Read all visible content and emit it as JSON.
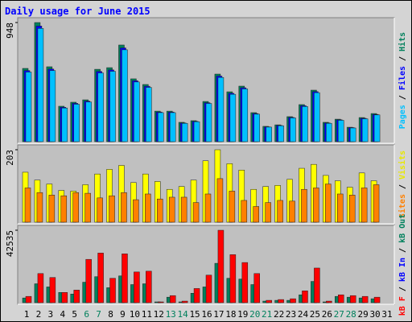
{
  "title": "Daily usage for June 2015",
  "categories": [
    "1",
    "2",
    "3",
    "4",
    "5",
    "6",
    "7",
    "8",
    "9",
    "10",
    "11",
    "12",
    "13",
    "14",
    "15",
    "16",
    "17",
    "18",
    "19",
    "20",
    "21",
    "22",
    "23",
    "24",
    "25",
    "26",
    "27",
    "28",
    "29",
    "30",
    "31"
  ],
  "x_label_colors": [
    "#000000",
    "#000000",
    "#000000",
    "#000000",
    "#000000",
    "#00805c",
    "#00805c",
    "#000000",
    "#000000",
    "#000000",
    "#000000",
    "#000000",
    "#00805c",
    "#00805c",
    "#000000",
    "#000000",
    "#000000",
    "#000000",
    "#000000",
    "#00805c",
    "#00805c",
    "#000000",
    "#000000",
    "#000000",
    "#000000",
    "#000000",
    "#00805c",
    "#00805c",
    "#000000",
    "#000000",
    "#000000"
  ],
  "legend_separator": " / ",
  "chart_data": [
    {
      "type": "bar",
      "ylim": [
        0,
        948
      ],
      "yticks": [
        948
      ],
      "series": [
        {
          "name": "Pages",
          "color": "#00c0ff",
          "values": [
            554,
            901,
            566,
            268,
            298,
            316,
            547,
            560,
            731,
            475,
            432,
            231,
            231,
            146,
            159,
            304,
            511,
            377,
            420,
            219,
            116,
            127,
            189,
            280,
            390,
            146,
            170,
            109,
            182,
            213,
            0
          ]
        },
        {
          "name": "Files",
          "color": "#0000ff",
          "values": [
            566,
            920,
            578,
            274,
            305,
            323,
            559,
            571,
            746,
            485,
            441,
            236,
            236,
            149,
            162,
            310,
            522,
            385,
            429,
            224,
            118,
            130,
            193,
            286,
            398,
            149,
            174,
            112,
            186,
            217,
            0
          ]
        },
        {
          "name": "Hits",
          "color": "#00805c",
          "values": [
            583,
            948,
            596,
            282,
            314,
            333,
            576,
            589,
            769,
            500,
            455,
            243,
            243,
            154,
            167,
            320,
            538,
            397,
            442,
            231,
            122,
            134,
            199,
            295,
            410,
            154,
            179,
            115,
            192,
            224,
            0
          ]
        }
      ]
    },
    {
      "type": "bar",
      "ylim": [
        0,
        203
      ],
      "yticks": [
        203
      ],
      "series": [
        {
          "name": "Sites",
          "color": "#ff8000",
          "values": [
            96,
            83,
            76,
            74,
            83,
            81,
            68,
            74,
            83,
            63,
            79,
            65,
            70,
            70,
            55,
            79,
            122,
            87,
            61,
            44,
            55,
            61,
            59,
            92,
            96,
            107,
            79,
            76,
            96,
            105,
            0
          ]
        },
        {
          "name": "Visits",
          "color": "#ffff00",
          "values": [
            140,
            118,
            107,
            89,
            87,
            105,
            135,
            148,
            159,
            111,
            135,
            114,
            92,
            100,
            118,
            172,
            203,
            164,
            146,
            92,
            100,
            103,
            120,
            151,
            162,
            131,
            116,
            98,
            138,
            116,
            0
          ]
        }
      ]
    },
    {
      "type": "bar",
      "ylim": [
        0,
        42535
      ],
      "yticks": [
        42535
      ],
      "series": [
        {
          "name": "kB F",
          "color": "#ff0000",
          "values": [
            3699,
            17106,
            14795,
            6011,
            7397,
            25429,
            29128,
            14333,
            28665,
            18031,
            18493,
            462,
            4161,
            925,
            8322,
            16181,
            42535,
            28202,
            23579,
            17106,
            1387,
            1849,
            2312,
            6935,
            20343,
            925,
            4623,
            4161,
            3699,
            3236,
            0
          ]
        },
        {
          "name": "kB In",
          "color": "#0000ff",
          "values": [
            0,
            0,
            0,
            0,
            0,
            0,
            0,
            0,
            0,
            0,
            0,
            0,
            0,
            0,
            0,
            0,
            0,
            0,
            0,
            0,
            0,
            0,
            0,
            0,
            0,
            0,
            0,
            0,
            0,
            0,
            0
          ]
        },
        {
          "name": "kB Out",
          "color": "#00805c",
          "values": [
            2774,
            11096,
            9247,
            6011,
            5086,
            12021,
            15257,
            8784,
            15720,
            10634,
            11096,
            462,
            3236,
            462,
            5548,
            9247,
            23117,
            14333,
            13871,
            10634,
            925,
            1387,
            1387,
            4623,
            12483,
            462,
            3699,
            3236,
            2774,
            2312,
            0
          ]
        }
      ]
    }
  ]
}
